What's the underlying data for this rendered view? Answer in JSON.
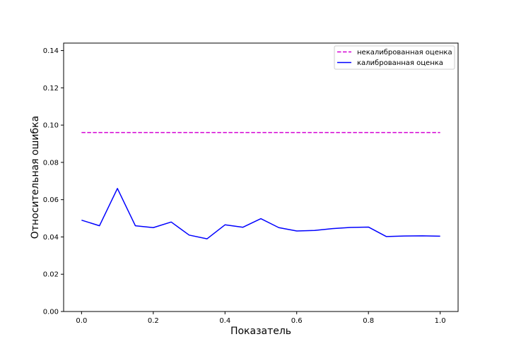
{
  "chart_data": {
    "type": "line",
    "xlabel": "Показатель",
    "ylabel": "Относительная ошибка",
    "xlim": [
      -0.05,
      1.05
    ],
    "ylim": [
      0.0,
      0.144
    ],
    "xticks": [
      "0.0",
      "0.2",
      "0.4",
      "0.6",
      "0.8",
      "1.0"
    ],
    "yticks": [
      "0.00",
      "0.02",
      "0.04",
      "0.06",
      "0.08",
      "0.10",
      "0.12",
      "0.14"
    ],
    "legend_position": "top-right",
    "grid": false,
    "series": [
      {
        "name": "некалиброванная оценка",
        "color": "#d400d4",
        "style": "dashed",
        "x": [
          0.0,
          0.05,
          0.1,
          0.15,
          0.2,
          0.25,
          0.3,
          0.35,
          0.4,
          0.45,
          0.5,
          0.55,
          0.6,
          0.65,
          0.7,
          0.75,
          0.8,
          0.85,
          0.9,
          0.95,
          1.0
        ],
        "values": [
          0.096,
          0.096,
          0.096,
          0.096,
          0.096,
          0.096,
          0.096,
          0.096,
          0.096,
          0.096,
          0.096,
          0.096,
          0.096,
          0.096,
          0.096,
          0.096,
          0.096,
          0.096,
          0.096,
          0.096,
          0.096
        ]
      },
      {
        "name": "калиброванная оценка",
        "color": "#0000ff",
        "style": "solid",
        "x": [
          0.0,
          0.05,
          0.1,
          0.15,
          0.2,
          0.25,
          0.3,
          0.35,
          0.4,
          0.45,
          0.5,
          0.55,
          0.6,
          0.65,
          0.7,
          0.75,
          0.8,
          0.85,
          0.9,
          0.95,
          1.0
        ],
        "values": [
          0.049,
          0.046,
          0.066,
          0.046,
          0.045,
          0.048,
          0.041,
          0.039,
          0.0465,
          0.0452,
          0.0498,
          0.045,
          0.0432,
          0.0435,
          0.0445,
          0.0451,
          0.0453,
          0.0402,
          0.0405,
          0.0406,
          0.0404
        ]
      }
    ]
  }
}
